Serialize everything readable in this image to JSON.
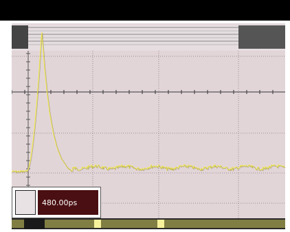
{
  "colors": {
    "background": "#e2d5d8",
    "trace": "#f0e84a",
    "grid": "#9a8c8f",
    "readout_bg": "#4a0f12"
  },
  "measurement": {
    "value_label": "480.00ps"
  },
  "waveform": {
    "baseline": 0.72,
    "peak": 0.03,
    "peak_position": 0.11,
    "noise": 0.012
  }
}
